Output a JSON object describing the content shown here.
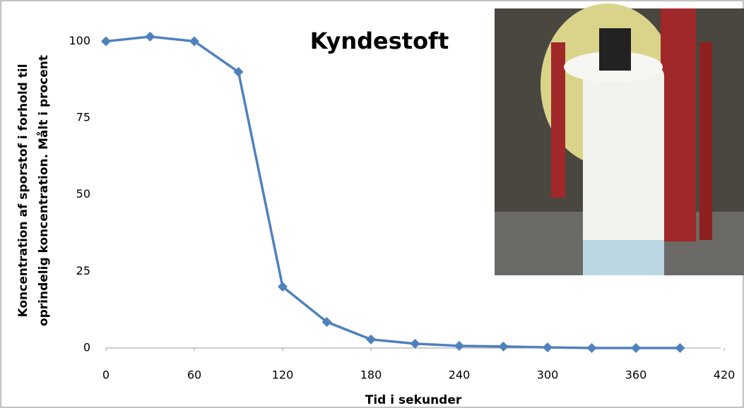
{
  "chart_data": {
    "type": "line",
    "title": "Kyndestoft",
    "y_label": [
      "Koncentration af sporstof i forhold til",
      "oprindelig koncentration. Målt i procent"
    ],
    "x_label": "Tid i sekunder",
    "x": [
      0,
      30,
      60,
      90,
      120,
      150,
      180,
      210,
      240,
      270,
      300,
      330,
      360,
      390
    ],
    "series": [
      {
        "name": "Kyndestoft",
        "color": "#4f81bd",
        "values": [
          100,
          101.5,
          100,
          90,
          20,
          8.5,
          2.8,
          1.4,
          0.7,
          0.5,
          0.2,
          0,
          0,
          0
        ]
      }
    ],
    "xlim": [
      0,
      420
    ],
    "xticks": [
      0,
      60,
      120,
      180,
      240,
      300,
      360,
      420
    ],
    "ylim": [
      0,
      110
    ],
    "yticks": [
      0,
      25,
      50,
      75,
      100
    ],
    "grid": false
  }
}
